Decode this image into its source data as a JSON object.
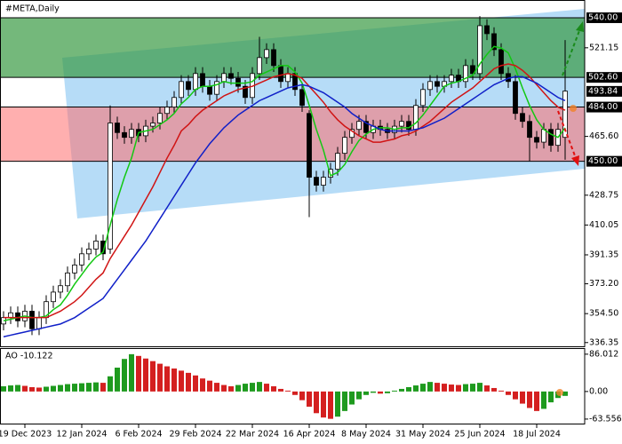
{
  "chart_data": [
    {
      "type": "candlestick",
      "title": "#META,Daily",
      "categories": [
        null,
        null,
        null,
        "19 Dec 2023",
        null,
        null,
        null,
        null,
        null,
        null,
        null,
        "12 Jan 2024",
        null,
        null,
        null,
        null,
        null,
        null,
        null,
        "6 Feb 2024",
        null,
        null,
        null,
        null,
        null,
        null,
        null,
        "29 Feb 2024",
        null,
        null,
        null,
        null,
        null,
        null,
        null,
        "22 Mar 2024",
        null,
        null,
        null,
        null,
        null,
        null,
        null,
        "16 Apr 2024",
        null,
        null,
        null,
        null,
        null,
        null,
        null,
        "8 May 2024",
        null,
        null,
        null,
        null,
        null,
        null,
        null,
        "31 May 2024",
        null,
        null,
        null,
        null,
        null,
        null,
        null,
        "25 Jun 2024",
        null,
        null,
        null,
        null,
        null,
        null,
        null,
        "18 Jul 2024",
        null,
        null,
        null,
        null
      ],
      "open": [
        348,
        352,
        355,
        350,
        356,
        345,
        352,
        362,
        368,
        372,
        380,
        385,
        392,
        395,
        400,
        395,
        474,
        468,
        465,
        470,
        466,
        472,
        474,
        480,
        484,
        490,
        500,
        495,
        505,
        497,
        492,
        500,
        505,
        502,
        497,
        490,
        505,
        515,
        520,
        510,
        500,
        505,
        495,
        480,
        440,
        435,
        440,
        445,
        455,
        465,
        470,
        475,
        468,
        472,
        470,
        468,
        472,
        475,
        470,
        485,
        495,
        500,
        497,
        500,
        504,
        500,
        510,
        505,
        535,
        530,
        520,
        505,
        500,
        480,
        475,
        465,
        462,
        470,
        460,
        465
      ],
      "high": [
        356,
        359,
        359,
        360,
        360,
        356,
        366,
        372,
        376,
        384,
        389,
        396,
        399,
        404,
        404,
        485,
        478,
        472,
        474,
        474,
        476,
        478,
        484,
        488,
        494,
        504,
        504,
        509,
        509,
        501,
        504,
        509,
        509,
        506,
        501,
        509,
        528,
        524,
        524,
        514,
        509,
        509,
        499,
        482,
        444,
        444,
        449,
        459,
        469,
        474,
        479,
        479,
        476,
        476,
        474,
        476,
        479,
        479,
        489,
        499,
        504,
        504,
        504,
        508,
        508,
        514,
        514,
        541,
        539,
        534,
        524,
        509,
        504,
        484,
        479,
        469,
        474,
        474,
        474,
        526
      ],
      "low": [
        344,
        348,
        346,
        346,
        341,
        341,
        348,
        358,
        364,
        368,
        376,
        381,
        388,
        391,
        388,
        392,
        464,
        461,
        461,
        462,
        462,
        468,
        470,
        476,
        480,
        486,
        491,
        491,
        493,
        488,
        488,
        496,
        498,
        493,
        486,
        486,
        501,
        511,
        506,
        496,
        496,
        491,
        481,
        415,
        431,
        431,
        436,
        441,
        451,
        461,
        466,
        464,
        464,
        466,
        464,
        464,
        468,
        466,
        466,
        481,
        491,
        493,
        493,
        496,
        496,
        496,
        501,
        501,
        526,
        516,
        501,
        496,
        476,
        471,
        450,
        458,
        458,
        456,
        456,
        451
      ],
      "close": [
        352,
        355,
        350,
        356,
        345,
        352,
        362,
        368,
        372,
        380,
        385,
        392,
        395,
        400,
        392,
        474,
        468,
        465,
        470,
        466,
        472,
        474,
        480,
        484,
        490,
        500,
        495,
        505,
        497,
        492,
        500,
        505,
        502,
        497,
        490,
        505,
        515,
        520,
        510,
        500,
        505,
        495,
        485,
        440,
        435,
        440,
        445,
        455,
        465,
        470,
        475,
        468,
        472,
        470,
        468,
        472,
        475,
        470,
        485,
        495,
        500,
        497,
        500,
        504,
        500,
        510,
        505,
        535,
        530,
        520,
        505,
        500,
        480,
        475,
        465,
        462,
        470,
        460,
        470,
        494
      ],
      "up_color": "#ffffff",
      "down_color": "#000000",
      "lines": [
        {
          "color": "#12c812",
          "values": [
            350,
            351,
            352,
            353,
            352,
            352,
            353,
            357,
            360,
            366,
            373,
            379,
            385,
            390,
            393,
            410,
            426,
            440,
            452,
            468,
            469,
            470,
            473,
            476,
            480,
            486,
            490,
            495,
            497,
            497,
            498,
            500,
            499,
            499,
            499,
            500,
            504,
            506,
            508,
            510,
            510,
            506,
            499,
            485,
            470,
            457,
            441,
            443,
            448,
            456,
            463,
            467,
            470,
            471,
            471,
            470,
            471,
            471,
            474,
            479,
            485,
            491,
            497,
            499,
            500,
            502,
            504,
            511,
            517,
            522,
            521,
            518,
            508,
            496,
            485,
            476,
            470,
            467,
            465,
            471
          ]
        },
        {
          "color": "#d01414",
          "values": [
            352,
            352,
            352,
            352,
            352,
            352,
            352,
            354,
            356,
            359,
            362,
            366,
            371,
            376,
            380,
            389,
            396,
            403,
            410,
            418,
            426,
            434,
            443,
            452,
            460,
            469,
            473,
            478,
            482,
            485,
            488,
            491,
            493,
            495,
            496,
            497,
            499,
            501,
            503,
            504,
            505,
            504,
            502,
            497,
            492,
            487,
            481,
            476,
            472,
            469,
            466,
            464,
            462,
            462,
            463,
            464,
            466,
            467,
            469,
            472,
            475,
            479,
            483,
            487,
            490,
            493,
            496,
            500,
            504,
            508,
            510,
            511,
            510,
            507,
            503,
            498,
            493,
            488,
            484,
            482
          ]
        },
        {
          "color": "#1020c8",
          "values": [
            340,
            341,
            342,
            343,
            344,
            345,
            346,
            347,
            348,
            350,
            352,
            355,
            358,
            361,
            364,
            370,
            376,
            382,
            388,
            394,
            400,
            407,
            414,
            421,
            428,
            435,
            442,
            449,
            455,
            461,
            466,
            471,
            475,
            479,
            482,
            485,
            488,
            490,
            492,
            494,
            496,
            497,
            498,
            497,
            495,
            493,
            490,
            487,
            484,
            480,
            477,
            474,
            472,
            470,
            469,
            469,
            469,
            469,
            470,
            471,
            473,
            475,
            477,
            480,
            483,
            486,
            489,
            492,
            495,
            498,
            500,
            502,
            503,
            503,
            501,
            499,
            496,
            493,
            490,
            488
          ]
        }
      ],
      "zones": [
        {
          "top": {
            "value": 540,
            "label": "540.00"
          },
          "bottom": {
            "value": 502.6,
            "label": "502.60"
          },
          "color": "rgba(50,150,60,0.68)"
        },
        {
          "top": {
            "value": 484,
            "label": "484.00"
          },
          "bottom": {
            "value": 450,
            "label": "450.00"
          },
          "color": "rgba(255,110,110,0.55)"
        }
      ],
      "last_price": 493.84,
      "ylim": [
        334,
        550
      ],
      "yticks": [
        336.35,
        {
          "value": 354.5,
          "label": "354.50"
        },
        {
          "value": 373.2,
          "label": "373.20"
        },
        391.35,
        410.05,
        428.75,
        {
          "value": 465.6,
          "label": "465.60"
        },
        521.15
      ]
    },
    {
      "type": "bar",
      "title": "AO -10.122",
      "values": [
        12,
        14,
        15,
        13,
        10,
        9,
        11,
        13,
        15,
        17,
        18,
        19,
        20,
        21,
        20,
        35,
        55,
        75,
        86,
        82,
        76,
        70,
        64,
        58,
        53,
        48,
        43,
        37,
        30,
        25,
        20,
        15,
        12,
        15,
        18,
        20,
        22,
        18,
        12,
        6,
        2,
        -8,
        -20,
        -35,
        -50,
        -60,
        -63,
        -58,
        -45,
        -30,
        -18,
        -8,
        -3,
        -5,
        -4,
        2,
        6,
        10,
        14,
        18,
        22,
        20,
        18,
        16,
        15,
        17,
        18,
        20,
        14,
        8,
        2,
        -8,
        -18,
        -28,
        -38,
        -45,
        -40,
        -25,
        -15,
        -10.122
      ],
      "up_color": "#1e9a1e",
      "down_color": "#d42020",
      "ylim": [
        -76,
        98
      ],
      "yticks": [
        86.012,
        {
          "value": 0,
          "label": "0.00"
        },
        -63.556
      ]
    }
  ]
}
